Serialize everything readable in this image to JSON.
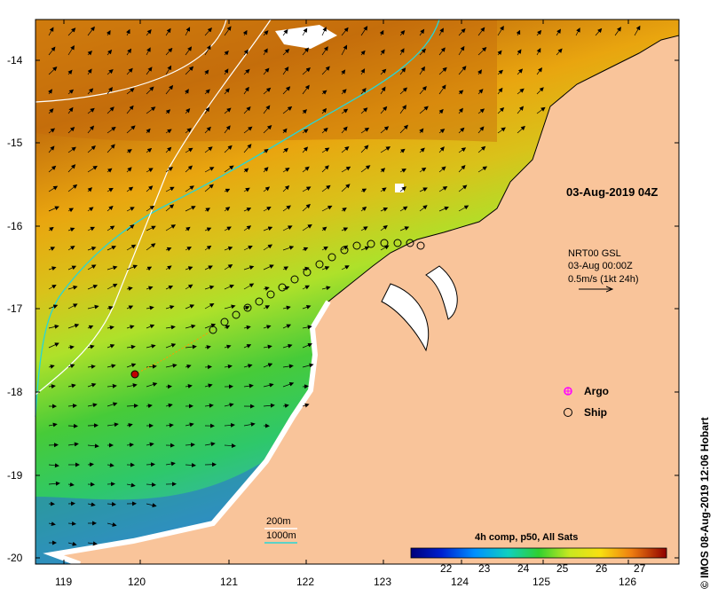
{
  "timestamp": "03-Aug-2019 04Z",
  "current_info": {
    "line1": "NRT00 GSL",
    "line2": "03-Aug 00:00Z",
    "line3": "0.5m/s (1kt 24h)"
  },
  "legend": {
    "argo": "Argo",
    "ship": "Ship"
  },
  "depth_legend": {
    "shallow": "200m",
    "deep": "1000m"
  },
  "colorbar": {
    "title": "4h comp, p50, All Sats",
    "ticks": [
      "22",
      "23",
      "24",
      "25",
      "26",
      "27"
    ]
  },
  "credit": "© IMOS 08-Aug-2019 12:06 Hobart",
  "axes": {
    "x_ticks": [
      "119",
      "120",
      "121",
      "122",
      "123",
      "124",
      "125",
      "126"
    ],
    "y_ticks": [
      "-14",
      "-15",
      "-16",
      "-17",
      "-18",
      "-19",
      "-20"
    ]
  },
  "colors": {
    "land": "#f9c49a",
    "contour_200": "#27d6d6",
    "contour_1000": "#ffffff",
    "argo": "#ff00ff",
    "ship": "#000000"
  }
}
